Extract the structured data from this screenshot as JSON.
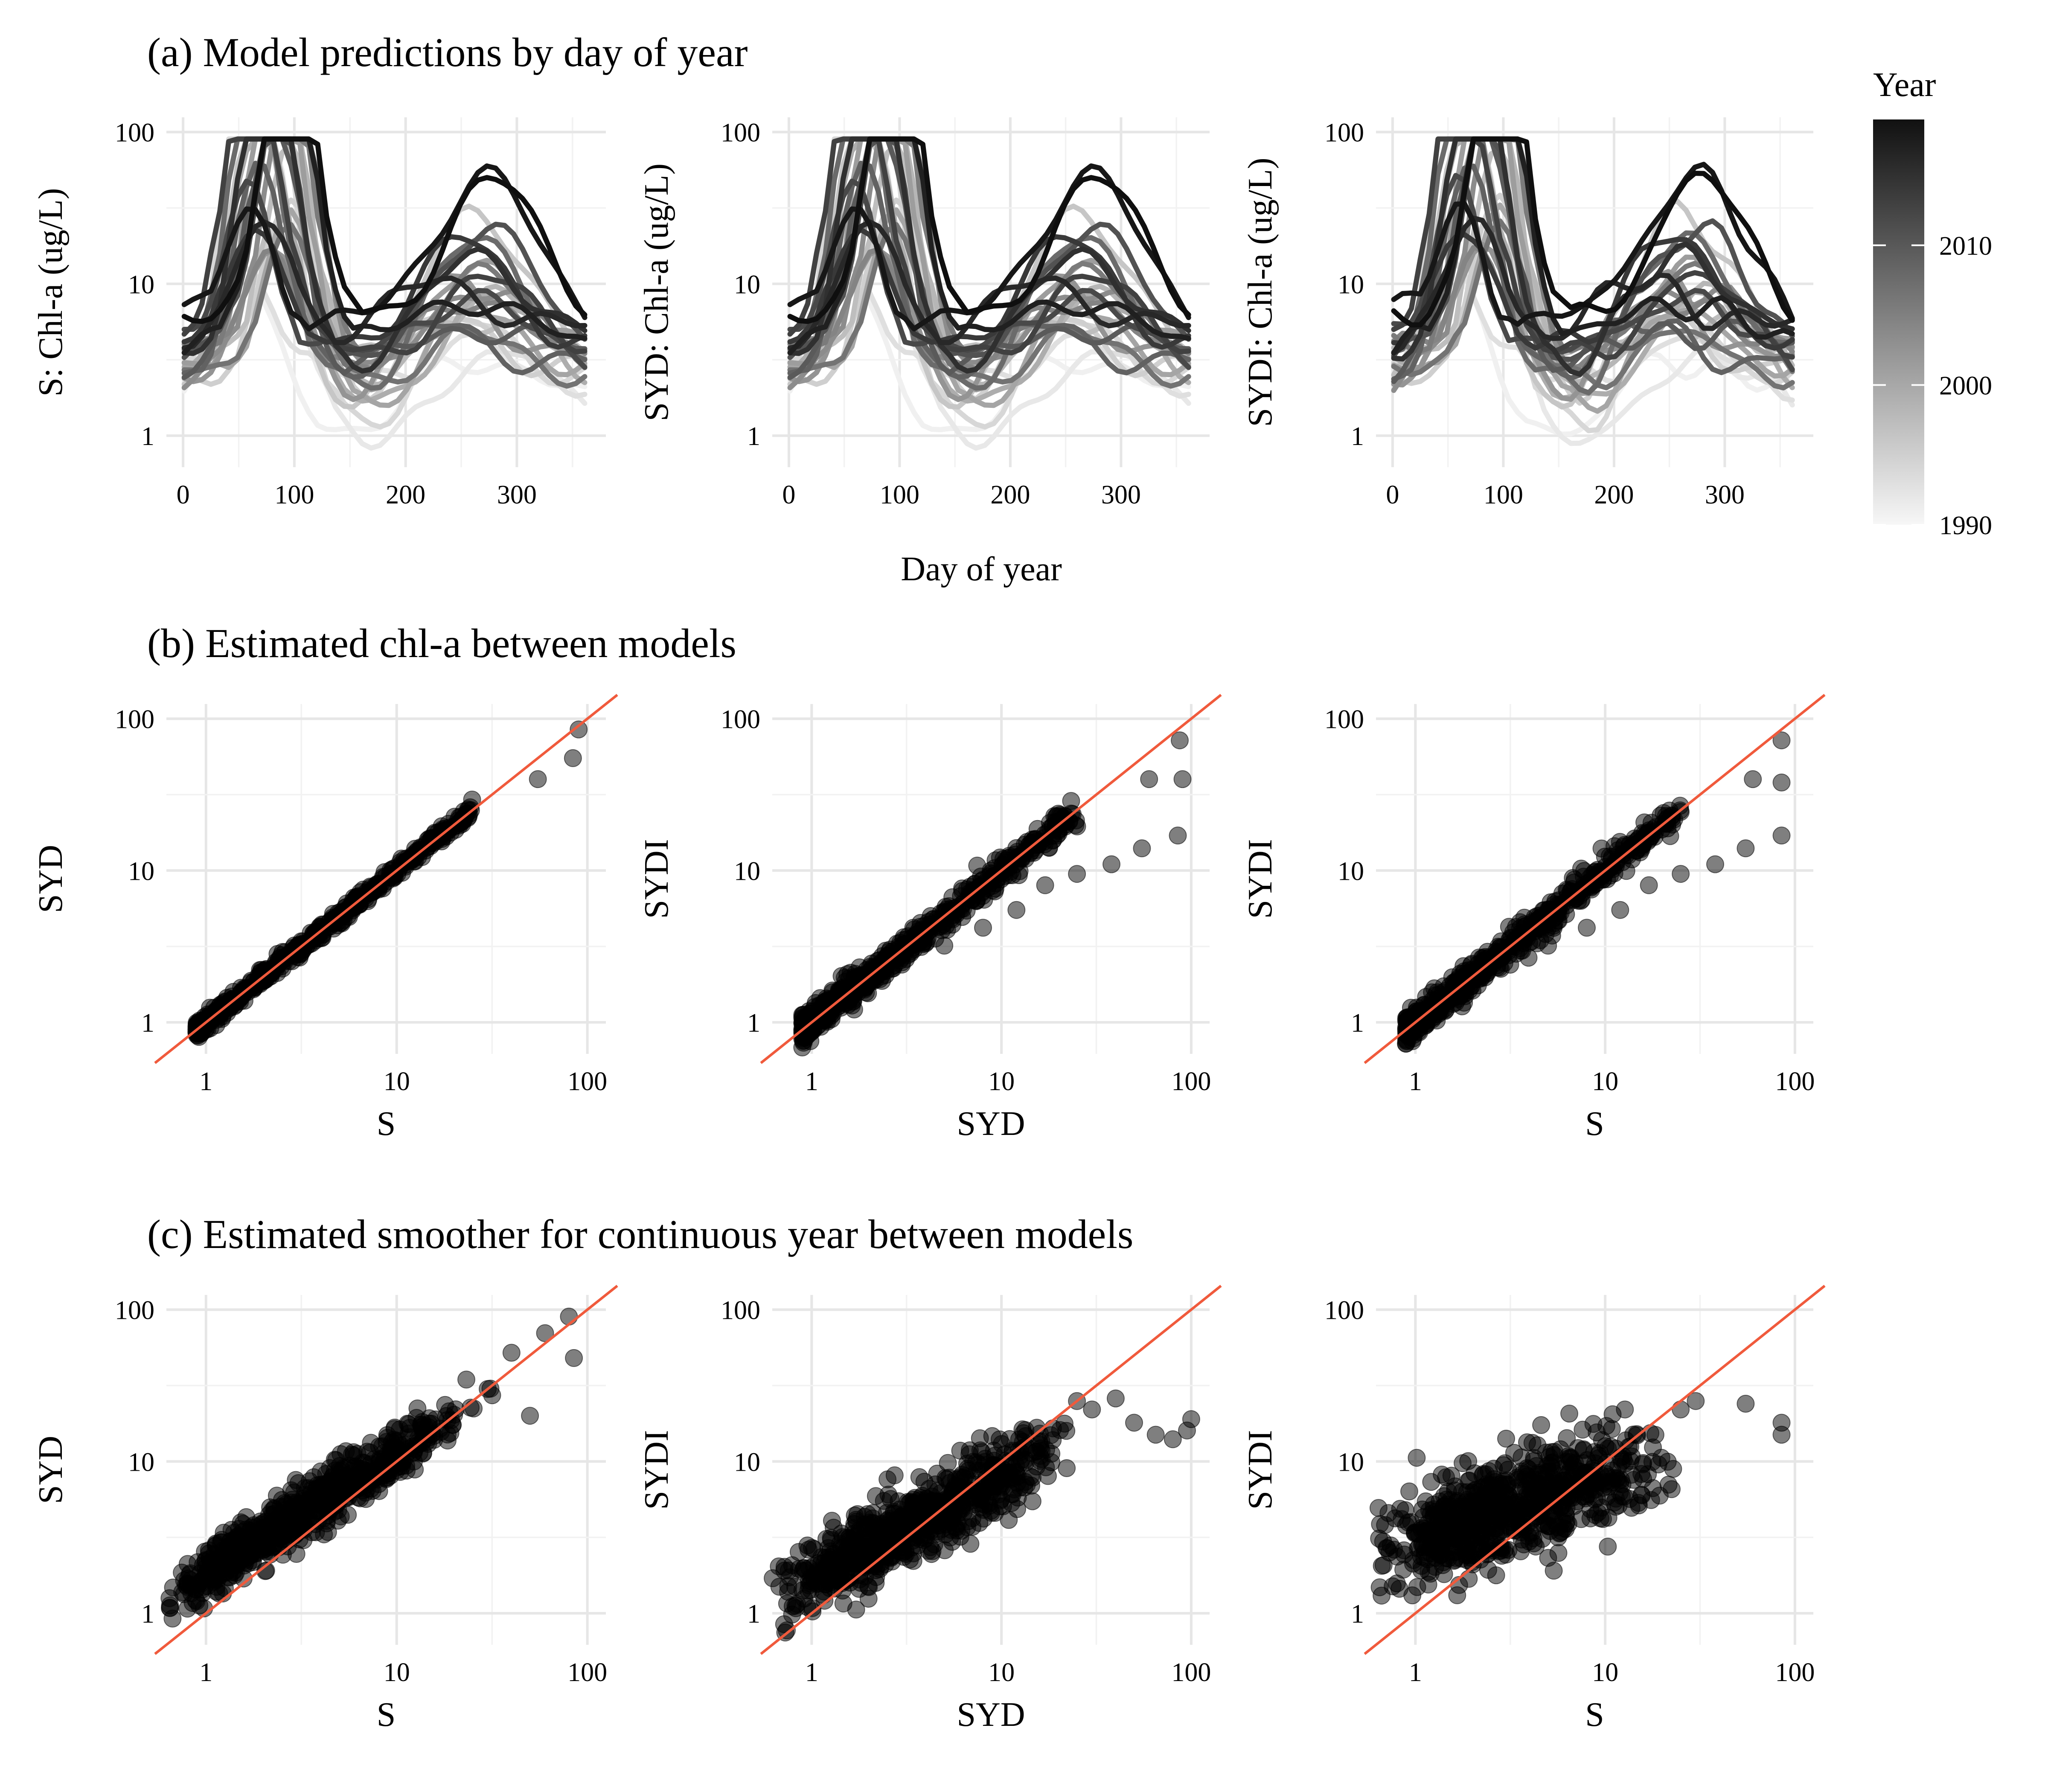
{
  "figure": {
    "row_titles": {
      "a": "(a) Model predictions by day of year",
      "b": "(b) Estimated chl-a between models",
      "c": "(c) Estimated smoother for continuous year between models"
    },
    "shared_xlabel_a": "Day of year",
    "legend": {
      "title": "Year",
      "ticks": [
        "1990",
        "2000",
        "2010"
      ],
      "range": [
        1990,
        2019
      ],
      "color_low": "#f7f7f7",
      "color_high": "#111111"
    },
    "ref_line_color": "#f05a3c"
  },
  "chart_data": [
    {
      "id": "a1",
      "type": "line",
      "ylabel": "S: Chl-a (ug/L)",
      "xlabel": "",
      "x_ticks": [
        "0",
        "100",
        "200",
        "300"
      ],
      "y_ticks": [
        "1",
        "10",
        "100"
      ],
      "xlim": [
        -15,
        380
      ],
      "ylim": [
        0.62,
        125
      ],
      "yscale": "log",
      "grid": true,
      "series_source": "generated",
      "variant": "S"
    },
    {
      "id": "a2",
      "type": "line",
      "ylabel": "SYD: Chl-a (ug/L)",
      "xlabel": "",
      "x_ticks": [
        "0",
        "100",
        "200",
        "300"
      ],
      "y_ticks": [
        "1",
        "10",
        "100"
      ],
      "xlim": [
        -15,
        380
      ],
      "ylim": [
        0.62,
        125
      ],
      "yscale": "log",
      "grid": true,
      "series_source": "generated",
      "variant": "SYD"
    },
    {
      "id": "a3",
      "type": "line",
      "ylabel": "SYDI: Chl-a (ug/L)",
      "xlabel": "",
      "x_ticks": [
        "0",
        "100",
        "200",
        "300"
      ],
      "y_ticks": [
        "1",
        "10",
        "100"
      ],
      "xlim": [
        -15,
        380
      ],
      "ylim": [
        0.62,
        125
      ],
      "yscale": "log",
      "grid": true,
      "series_source": "generated",
      "variant": "SYDI"
    },
    {
      "id": "b1",
      "type": "scatter",
      "xlabel": "S",
      "ylabel": "SYD",
      "x_ticks": [
        "1",
        "10",
        "100"
      ],
      "y_ticks": [
        "1",
        "10",
        "100"
      ],
      "xlim": [
        0.62,
        125
      ],
      "ylim": [
        0.62,
        125
      ],
      "xscale": "log",
      "yscale": "log",
      "ref_line": "y = x",
      "spread_log10": 0.025,
      "n_points": 600,
      "outliers": [
        [
          55,
          40
        ],
        [
          84,
          55
        ],
        [
          90,
          85
        ]
      ]
    },
    {
      "id": "b2",
      "type": "scatter",
      "xlabel": "SYD",
      "ylabel": "SYDI",
      "x_ticks": [
        "1",
        "10",
        "100"
      ],
      "y_ticks": [
        "1",
        "10",
        "100"
      ],
      "xlim": [
        0.62,
        125
      ],
      "ylim": [
        0.62,
        125
      ],
      "xscale": "log",
      "yscale": "log",
      "ref_line": "y = x",
      "spread_log10": 0.05,
      "n_points": 600,
      "outliers": [
        [
          5,
          3.2
        ],
        [
          8,
          4.2
        ],
        [
          12,
          5.5
        ],
        [
          17,
          8
        ],
        [
          25,
          9.5
        ],
        [
          38,
          11
        ],
        [
          55,
          14
        ],
        [
          85,
          17
        ],
        [
          60,
          40
        ],
        [
          90,
          40
        ],
        [
          87,
          72
        ]
      ]
    },
    {
      "id": "b3",
      "type": "scatter",
      "xlabel": "S",
      "ylabel": "SYDI",
      "x_ticks": [
        "1",
        "10",
        "100"
      ],
      "y_ticks": [
        "1",
        "10",
        "100"
      ],
      "xlim": [
        0.62,
        125
      ],
      "ylim": [
        0.62,
        125
      ],
      "xscale": "log",
      "yscale": "log",
      "ref_line": "y = x",
      "spread_log10": 0.05,
      "n_points": 600,
      "outliers": [
        [
          5,
          3.2
        ],
        [
          8,
          4.2
        ],
        [
          12,
          5.5
        ],
        [
          17,
          8
        ],
        [
          25,
          9.5
        ],
        [
          38,
          11
        ],
        [
          55,
          14
        ],
        [
          85,
          17
        ],
        [
          60,
          40
        ],
        [
          85,
          38
        ],
        [
          85,
          72
        ]
      ]
    },
    {
      "id": "c1",
      "type": "scatter",
      "xlabel": "S",
      "ylabel": "SYD",
      "x_ticks": [
        "1",
        "10",
        "100"
      ],
      "y_ticks": [
        "1",
        "10",
        "100"
      ],
      "xlim": [
        0.62,
        125
      ],
      "ylim": [
        0.62,
        125
      ],
      "xscale": "log",
      "yscale": "log",
      "ref_line": "y = x",
      "trend": {
        "slope": 0.78,
        "at_x1": 1.85
      },
      "spread_log10": 0.09,
      "n_points": 700,
      "outliers": [
        [
          80,
          90
        ],
        [
          60,
          70
        ],
        [
          85,
          48
        ],
        [
          40,
          52
        ],
        [
          50,
          20
        ],
        [
          30,
          30
        ]
      ]
    },
    {
      "id": "c2",
      "type": "scatter",
      "xlabel": "SYD",
      "ylabel": "SYDI",
      "x_ticks": [
        "1",
        "10",
        "100"
      ],
      "y_ticks": [
        "1",
        "10",
        "100"
      ],
      "xlim": [
        0.62,
        125
      ],
      "ylim": [
        0.62,
        125
      ],
      "xscale": "log",
      "yscale": "log",
      "ref_line": "y = x",
      "trend": {
        "slope": 0.68,
        "at_x1": 1.7
      },
      "spread_log10": 0.12,
      "n_points": 700,
      "outliers": [
        [
          50,
          18
        ],
        [
          65,
          15
        ],
        [
          80,
          14
        ],
        [
          95,
          16
        ],
        [
          100,
          19
        ],
        [
          25,
          25
        ],
        [
          40,
          26
        ],
        [
          30,
          22
        ]
      ]
    },
    {
      "id": "c3",
      "type": "scatter",
      "xlabel": "S",
      "ylabel": "SYDI",
      "x_ticks": [
        "1",
        "10",
        "100"
      ],
      "y_ticks": [
        "1",
        "10",
        "100"
      ],
      "xlim": [
        0.62,
        125
      ],
      "ylim": [
        0.62,
        125
      ],
      "xscale": "log",
      "yscale": "log",
      "ref_line": "y = x",
      "trend": {
        "slope": 0.42,
        "at_x1": 3.1
      },
      "spread_log10": 0.16,
      "n_points": 700,
      "outliers": [
        [
          85,
          18
        ],
        [
          85,
          15
        ],
        [
          55,
          24
        ],
        [
          30,
          25
        ],
        [
          25,
          22
        ]
      ]
    }
  ]
}
